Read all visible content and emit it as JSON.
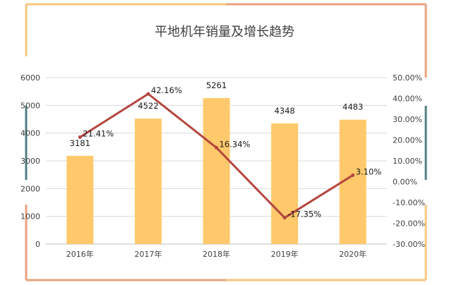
{
  "chart_data": {
    "type": "bar",
    "title": "平地机年销量及增长趋势",
    "categories": [
      "2016年",
      "2017年",
      "2018年",
      "2019年",
      "2020年"
    ],
    "series": [
      {
        "type": "bar",
        "values": [
          3181,
          4522,
          5261,
          4348,
          4483
        ],
        "value_labels": [
          "3181",
          "4522",
          "5261",
          "4348",
          "4483"
        ],
        "color": "#FFC96B",
        "axis": "left"
      },
      {
        "type": "line",
        "values": [
          21.41,
          42.16,
          16.34,
          -17.35,
          3.1
        ],
        "value_labels": [
          "21.41%",
          "42.16%",
          "16.34%",
          "-17.35%",
          "3.10%"
        ],
        "color": "#B5453F",
        "axis": "right"
      }
    ],
    "y_left": {
      "min": 0,
      "max": 6000,
      "ticks": [
        "0",
        "1000",
        "2000",
        "3000",
        "4000",
        "5000",
        "6000"
      ]
    },
    "y_right": {
      "min": -30,
      "max": 50,
      "ticks": [
        "-30.00%",
        "-20.00%",
        "-10.00%",
        "0.00%",
        "10.00%",
        "20.00%",
        "30.00%",
        "40.00%",
        "50.00%"
      ]
    },
    "grid": true,
    "legend": "none",
    "frame_colors": {
      "top_left": "#F5C77E",
      "top_right": "#E8A27F",
      "right": "#4F7F83",
      "left": "#4F7F83",
      "bottom_left": "#E8A27F",
      "bottom_right": "#F5C77E"
    }
  }
}
